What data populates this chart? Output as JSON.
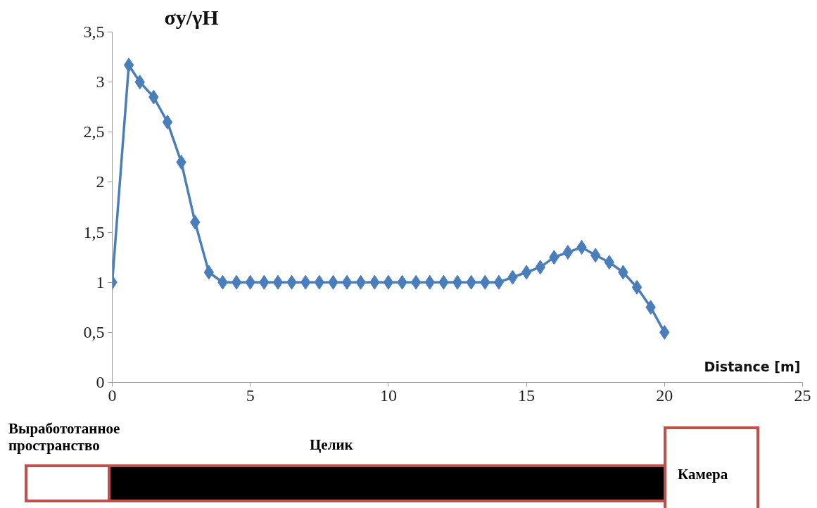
{
  "chart_data": {
    "type": "line",
    "ylabel": "σy/γH",
    "xlabel": "Distance [m]",
    "x": [
      0,
      0.6,
      1,
      1.5,
      2,
      2.5,
      3,
      3.5,
      4,
      4.5,
      5,
      5.5,
      6,
      6.5,
      7,
      7.5,
      8,
      8.5,
      9,
      9.5,
      10,
      10.5,
      11,
      11.5,
      12,
      12.5,
      13,
      13.5,
      14,
      14.5,
      15,
      15.5,
      16,
      16.5,
      17,
      17.5,
      18,
      18.5,
      19,
      19.5,
      20
    ],
    "values": [
      1,
      3.17,
      3.0,
      2.85,
      2.6,
      2.2,
      1.6,
      1.1,
      1,
      1,
      1,
      1,
      1,
      1,
      1,
      1,
      1,
      1,
      1,
      1,
      1,
      1,
      1,
      1,
      1,
      1,
      1,
      1,
      1,
      1.05,
      1.1,
      1.15,
      1.25,
      1.3,
      1.35,
      1.27,
      1.2,
      1.1,
      0.95,
      0.75,
      0.5
    ],
    "color": "#4a7ebb",
    "marker": "diamond",
    "line_style": "solid",
    "xlim": [
      0,
      25
    ],
    "ylim": [
      0,
      3.5
    ],
    "xticks": [
      0,
      5,
      10,
      15,
      20,
      25
    ],
    "yticks": [
      0,
      {
        "value": 0.5,
        "label": "0,5"
      },
      1,
      {
        "value": 1.5,
        "label": "1,5"
      },
      2,
      {
        "value": 2.5,
        "label": "2,5"
      },
      3,
      {
        "value": 3.5,
        "label": "3,5"
      }
    ],
    "annotations": [
      "Выработотанное\nпространство",
      "Целик",
      "Камера"
    ]
  }
}
